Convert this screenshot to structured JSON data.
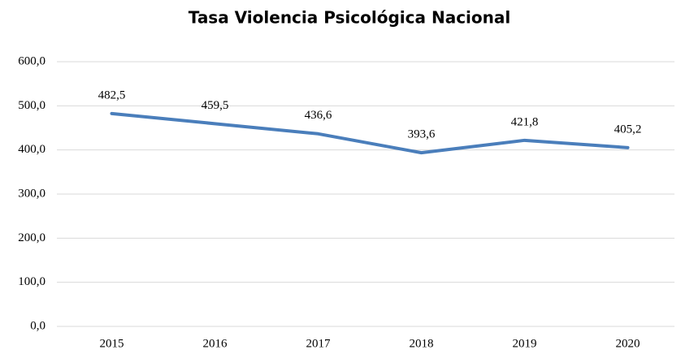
{
  "chart_data": {
    "type": "line",
    "title": "Tasa Violencia Psicológica Nacional",
    "categories": [
      "2015",
      "2016",
      "2017",
      "2018",
      "2019",
      "2020"
    ],
    "values": [
      482.5,
      459.5,
      436.6,
      393.6,
      421.8,
      405.2
    ],
    "value_labels": [
      "482,5",
      "459,5",
      "436,6",
      "393,6",
      "421,8",
      "405,2"
    ],
    "color": "#4a7ebb",
    "ylim": [
      0,
      600
    ],
    "yticks": [
      {
        "value": 0,
        "label": "0,0"
      },
      {
        "value": 100,
        "label": "100,0"
      },
      {
        "value": 200,
        "label": "200,0"
      },
      {
        "value": 300,
        "label": "300,0"
      },
      {
        "value": 400,
        "label": "400,0"
      },
      {
        "value": 500,
        "label": "500,0"
      },
      {
        "value": 600,
        "label": "600,0"
      }
    ],
    "grid": true
  }
}
